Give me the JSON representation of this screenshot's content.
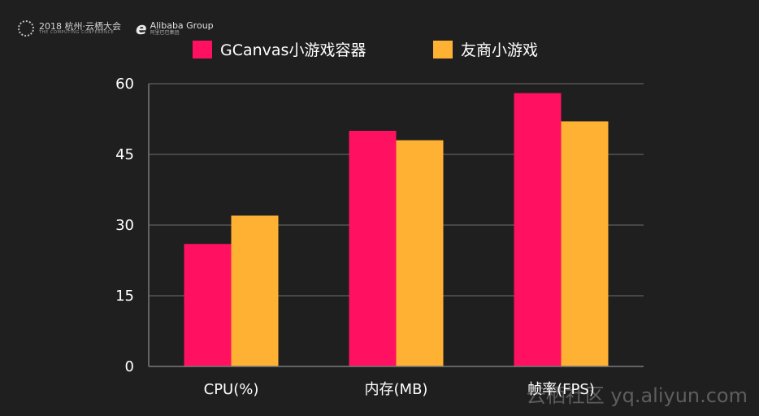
{
  "header": {
    "conference_line1": "2018 杭州·云栖大会",
    "conference_line2": "THE COMPUTING CONFERENCE",
    "alibaba_line1": "Alibaba Group",
    "alibaba_line2": "阿里巴巴集团"
  },
  "watermark": "云栖社区 yq.aliyun.com",
  "chart_data": {
    "type": "bar",
    "title": "",
    "xlabel": "",
    "ylabel": "",
    "categories": [
      "CPU(%)",
      "内存(MB)",
      "帧率(FPS)"
    ],
    "series": [
      {
        "name": "GCanvas小游戏容器",
        "color": "#ff1060",
        "values": [
          26,
          50,
          58
        ]
      },
      {
        "name": "友商小游戏",
        "color": "#ffb133",
        "values": [
          32,
          48,
          52
        ]
      }
    ],
    "ylim": [
      0,
      60
    ],
    "yticks": [
      0,
      15,
      30,
      45,
      60
    ],
    "grid": true,
    "legend_position": "top-center",
    "colors": {
      "background": "#1f1f1f",
      "grid": "#555555",
      "axis": "#7a7a7a",
      "text": "#ffffff"
    }
  }
}
